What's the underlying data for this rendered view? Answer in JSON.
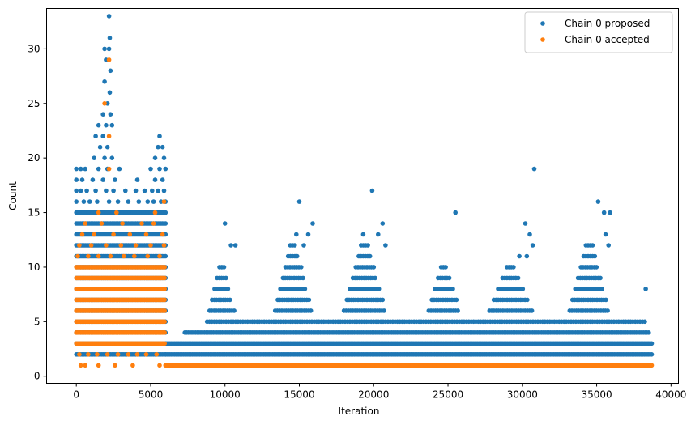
{
  "chart_data": {
    "type": "scatter",
    "xlabel": "Iteration",
    "ylabel": "Count",
    "xlim": [
      -2000,
      40500
    ],
    "ylim": [
      -0.65,
      33.7
    ],
    "xticks": [
      0,
      5000,
      10000,
      15000,
      20000,
      25000,
      30000,
      35000,
      40000
    ],
    "yticks": [
      0,
      5,
      10,
      15,
      20,
      25,
      30
    ],
    "xtick_labels": [
      "0",
      "5000",
      "10000",
      "15000",
      "20000",
      "25000",
      "30000",
      "35000",
      "40000"
    ],
    "ytick_labels": [
      "0",
      "5",
      "10",
      "15",
      "20",
      "25",
      "30"
    ],
    "grid": false,
    "legend_position": "top-right",
    "series": [
      {
        "name": "Chain 0 proposed",
        "color": "#1f77b4",
        "segments": [
          {
            "x_start": 0,
            "x_end": 6000,
            "y_min": 2,
            "y_max": 15,
            "step": 100
          },
          {
            "x_start": 6000,
            "x_end": 38700,
            "y_min": 2,
            "y_max": 3,
            "step": 100
          },
          {
            "x_start": 7300,
            "x_end": 38500,
            "y_min": 4,
            "y_max": 4,
            "step": 120
          },
          {
            "x_start": 8800,
            "x_end": 38300,
            "y_min": 5,
            "y_max": 5,
            "step": 160
          }
        ],
        "peaks": [
          {
            "x_start": 8800,
            "x_end": 10800,
            "y_max": 10
          },
          {
            "x_start": 13200,
            "x_end": 16000,
            "y_max": 12
          },
          {
            "x_start": 17800,
            "x_end": 21000,
            "y_max": 12
          },
          {
            "x_start": 23500,
            "x_end": 26000,
            "y_max": 10
          },
          {
            "x_start": 27500,
            "x_end": 31000,
            "y_max": 10
          },
          {
            "x_start": 33000,
            "x_end": 36000,
            "y_max": 12
          }
        ],
        "points": [
          {
            "x": 2200,
            "y": 33
          },
          {
            "x": 2250,
            "y": 31
          },
          {
            "x": 2200,
            "y": 30
          },
          {
            "x": 1900,
            "y": 30
          },
          {
            "x": 2000,
            "y": 29
          },
          {
            "x": 2300,
            "y": 28
          },
          {
            "x": 1900,
            "y": 27
          },
          {
            "x": 2250,
            "y": 26
          },
          {
            "x": 2100,
            "y": 25
          },
          {
            "x": 1800,
            "y": 24
          },
          {
            "x": 2300,
            "y": 24
          },
          {
            "x": 1500,
            "y": 23
          },
          {
            "x": 2000,
            "y": 23
          },
          {
            "x": 2400,
            "y": 23
          },
          {
            "x": 1300,
            "y": 22
          },
          {
            "x": 1800,
            "y": 22
          },
          {
            "x": 5600,
            "y": 22
          },
          {
            "x": 1600,
            "y": 21
          },
          {
            "x": 2100,
            "y": 21
          },
          {
            "x": 5500,
            "y": 21
          },
          {
            "x": 5800,
            "y": 21
          },
          {
            "x": 1200,
            "y": 20
          },
          {
            "x": 1900,
            "y": 20
          },
          {
            "x": 2400,
            "y": 20
          },
          {
            "x": 5300,
            "y": 20
          },
          {
            "x": 5900,
            "y": 20
          },
          {
            "x": 0,
            "y": 19
          },
          {
            "x": 300,
            "y": 19
          },
          {
            "x": 600,
            "y": 19
          },
          {
            "x": 1500,
            "y": 19
          },
          {
            "x": 2100,
            "y": 19
          },
          {
            "x": 2900,
            "y": 19
          },
          {
            "x": 5000,
            "y": 19
          },
          {
            "x": 5600,
            "y": 19
          },
          {
            "x": 6000,
            "y": 19
          },
          {
            "x": 0,
            "y": 18
          },
          {
            "x": 400,
            "y": 18
          },
          {
            "x": 1100,
            "y": 18
          },
          {
            "x": 1800,
            "y": 18
          },
          {
            "x": 2600,
            "y": 18
          },
          {
            "x": 4100,
            "y": 18
          },
          {
            "x": 5300,
            "y": 18
          },
          {
            "x": 5800,
            "y": 18
          },
          {
            "x": 0,
            "y": 17
          },
          {
            "x": 300,
            "y": 17
          },
          {
            "x": 700,
            "y": 17
          },
          {
            "x": 1300,
            "y": 17
          },
          {
            "x": 2000,
            "y": 17
          },
          {
            "x": 2500,
            "y": 17
          },
          {
            "x": 3300,
            "y": 17
          },
          {
            "x": 4000,
            "y": 17
          },
          {
            "x": 4600,
            "y": 17
          },
          {
            "x": 5100,
            "y": 17
          },
          {
            "x": 5500,
            "y": 17
          },
          {
            "x": 5900,
            "y": 17
          },
          {
            "x": 0,
            "y": 16
          },
          {
            "x": 500,
            "y": 16
          },
          {
            "x": 900,
            "y": 16
          },
          {
            "x": 1400,
            "y": 16
          },
          {
            "x": 2200,
            "y": 16
          },
          {
            "x": 2800,
            "y": 16
          },
          {
            "x": 3500,
            "y": 16
          },
          {
            "x": 4200,
            "y": 16
          },
          {
            "x": 4800,
            "y": 16
          },
          {
            "x": 5200,
            "y": 16
          },
          {
            "x": 5700,
            "y": 16
          },
          {
            "x": 6000,
            "y": 16
          },
          {
            "x": 10000,
            "y": 14
          },
          {
            "x": 10400,
            "y": 12
          },
          {
            "x": 10700,
            "y": 12
          },
          {
            "x": 15000,
            "y": 16
          },
          {
            "x": 14800,
            "y": 13
          },
          {
            "x": 15300,
            "y": 12
          },
          {
            "x": 15900,
            "y": 14
          },
          {
            "x": 15600,
            "y": 13
          },
          {
            "x": 19900,
            "y": 17
          },
          {
            "x": 19300,
            "y": 13
          },
          {
            "x": 20300,
            "y": 13
          },
          {
            "x": 20600,
            "y": 14
          },
          {
            "x": 20800,
            "y": 12
          },
          {
            "x": 25500,
            "y": 15
          },
          {
            "x": 30800,
            "y": 19
          },
          {
            "x": 30200,
            "y": 14
          },
          {
            "x": 30500,
            "y": 13
          },
          {
            "x": 30700,
            "y": 12
          },
          {
            "x": 35100,
            "y": 16
          },
          {
            "x": 35500,
            "y": 15
          },
          {
            "x": 35900,
            "y": 15
          },
          {
            "x": 35600,
            "y": 13
          },
          {
            "x": 35800,
            "y": 12
          },
          {
            "x": 38300,
            "y": 8
          },
          {
            "x": 29800,
            "y": 11
          },
          {
            "x": 30300,
            "y": 11
          }
        ]
      },
      {
        "name": "Chain 0 accepted",
        "color": "#ff7f0e",
        "segments": [
          {
            "x_start": 0,
            "x_end": 6000,
            "y_min": 3,
            "y_max": 10,
            "step": 90
          },
          {
            "x_start": 6000,
            "x_end": 38700,
            "y_min": 1,
            "y_max": 1,
            "step": 60
          }
        ],
        "points": [
          {
            "x": 2200,
            "y": 29
          },
          {
            "x": 1900,
            "y": 25
          },
          {
            "x": 2200,
            "y": 22
          },
          {
            "x": 2200,
            "y": 19
          },
          {
            "x": 5900,
            "y": 16
          },
          {
            "x": 1500,
            "y": 15
          },
          {
            "x": 2700,
            "y": 15
          },
          {
            "x": 5300,
            "y": 15
          },
          {
            "x": 600,
            "y": 14
          },
          {
            "x": 1700,
            "y": 14
          },
          {
            "x": 3100,
            "y": 14
          },
          {
            "x": 4400,
            "y": 14
          },
          {
            "x": 5200,
            "y": 14
          },
          {
            "x": 400,
            "y": 13
          },
          {
            "x": 1200,
            "y": 13
          },
          {
            "x": 2500,
            "y": 13
          },
          {
            "x": 3600,
            "y": 13
          },
          {
            "x": 4700,
            "y": 13
          },
          {
            "x": 5800,
            "y": 13
          },
          {
            "x": 200,
            "y": 12
          },
          {
            "x": 1000,
            "y": 12
          },
          {
            "x": 2000,
            "y": 12
          },
          {
            "x": 3000,
            "y": 12
          },
          {
            "x": 4000,
            "y": 12
          },
          {
            "x": 5000,
            "y": 12
          },
          {
            "x": 5900,
            "y": 12
          },
          {
            "x": 100,
            "y": 11
          },
          {
            "x": 800,
            "y": 11
          },
          {
            "x": 1500,
            "y": 11
          },
          {
            "x": 2300,
            "y": 11
          },
          {
            "x": 3200,
            "y": 11
          },
          {
            "x": 3900,
            "y": 11
          },
          {
            "x": 4800,
            "y": 11
          },
          {
            "x": 5600,
            "y": 11
          },
          {
            "x": 200,
            "y": 2
          },
          {
            "x": 800,
            "y": 2
          },
          {
            "x": 1400,
            "y": 2
          },
          {
            "x": 2100,
            "y": 2
          },
          {
            "x": 2800,
            "y": 2
          },
          {
            "x": 3500,
            "y": 2
          },
          {
            "x": 4100,
            "y": 2
          },
          {
            "x": 4700,
            "y": 2
          },
          {
            "x": 5400,
            "y": 2
          },
          {
            "x": 300,
            "y": 1
          },
          {
            "x": 600,
            "y": 1
          },
          {
            "x": 1500,
            "y": 1
          },
          {
            "x": 2600,
            "y": 1
          },
          {
            "x": 3800,
            "y": 1
          },
          {
            "x": 5600,
            "y": 1
          }
        ]
      }
    ]
  }
}
